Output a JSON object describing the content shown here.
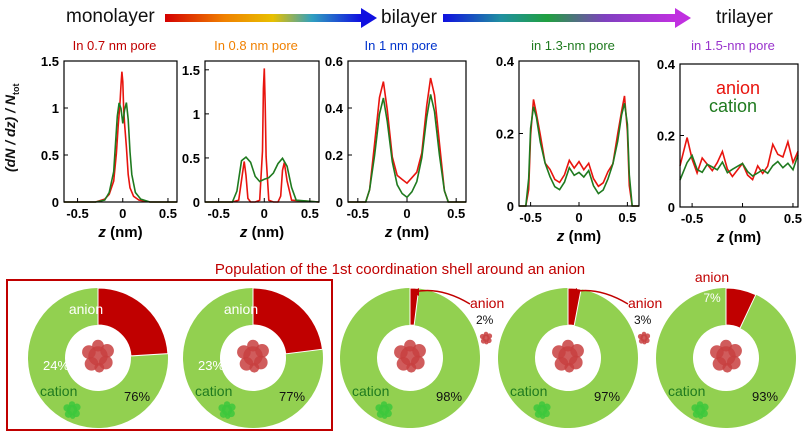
{
  "header": {
    "stages": [
      "monolayer",
      "bilayer",
      "trilayer"
    ]
  },
  "colors": {
    "anion": "#e8140e",
    "cation": "#1f7a1f",
    "ring": "#92d050",
    "wedge": "#c00000",
    "frame": "#c00000"
  },
  "y_axis_label": "(dN / dz) / N",
  "y_axis_label_sub": "tot",
  "x_axis_label_italic": "z",
  "x_axis_label_unit": " (nm)",
  "legend": {
    "anion": "anion",
    "cation": "cation"
  },
  "chart_data": [
    {
      "type": "line",
      "title": "In 0.7 nm pore",
      "title_color": "#c00000",
      "xlim": [
        -0.65,
        0.6
      ],
      "ylim": [
        0,
        1.5
      ],
      "xticks": [
        "-0.5",
        "0",
        "0.5"
      ],
      "xtick_values": [
        -0.5,
        0,
        0.5
      ],
      "yticks": [
        "0",
        "0.5",
        "1",
        "1.5"
      ],
      "ytick_values": [
        0,
        0.5,
        1,
        1.5
      ],
      "series": [
        {
          "key": "anion",
          "x": [
            -0.65,
            -0.3,
            -0.2,
            -0.15,
            -0.1,
            -0.07,
            -0.05,
            -0.03,
            -0.02,
            -0.01,
            0,
            0.01,
            0.02,
            0.04,
            0.06,
            0.08,
            0.12,
            0.18,
            0.3,
            0.6
          ],
          "y": [
            0,
            0,
            0.03,
            0.06,
            0.2,
            0.5,
            0.8,
            1.05,
            1.25,
            1.4,
            1.3,
            1.0,
            0.85,
            0.6,
            0.3,
            0.15,
            0.05,
            0.02,
            0,
            0
          ]
        },
        {
          "key": "cation",
          "x": [
            -0.65,
            -0.3,
            -0.2,
            -0.15,
            -0.1,
            -0.08,
            -0.06,
            -0.04,
            -0.02,
            0,
            0.02,
            0.04,
            0.06,
            0.08,
            0.1,
            0.14,
            0.2,
            0.3,
            0.6
          ],
          "y": [
            0,
            0,
            0.02,
            0.08,
            0.3,
            0.6,
            0.9,
            1.05,
            1.0,
            0.85,
            1.0,
            1.08,
            0.9,
            0.55,
            0.3,
            0.1,
            0.03,
            0,
            0
          ]
        }
      ]
    },
    {
      "type": "line",
      "title": "In 0.8 nm pore",
      "title_color": "#f08000",
      "xlim": [
        -0.65,
        0.6
      ],
      "ylim": [
        0,
        1.6
      ],
      "xticks": [
        "-0.5",
        "0",
        "0.5"
      ],
      "xtick_values": [
        -0.5,
        0,
        0.5
      ],
      "yticks": [
        "0",
        "0.5",
        "1",
        "1.5"
      ],
      "ytick_values": [
        0,
        0.5,
        1,
        1.5
      ],
      "series": [
        {
          "key": "anion",
          "x": [
            -0.65,
            -0.35,
            -0.28,
            -0.24,
            -0.22,
            -0.2,
            -0.18,
            -0.15,
            -0.1,
            -0.05,
            -0.02,
            -0.01,
            0,
            0.01,
            0.02,
            0.05,
            0.1,
            0.15,
            0.18,
            0.2,
            0.22,
            0.25,
            0.3,
            0.6
          ],
          "y": [
            0,
            0,
            0.02,
            0.3,
            0.45,
            0.3,
            0.05,
            0,
            0,
            0.02,
            0.6,
            1.3,
            1.52,
            1.1,
            0.5,
            0.02,
            0,
            0,
            0.05,
            0.35,
            0.45,
            0.25,
            0.02,
            0
          ]
        },
        {
          "key": "cation",
          "x": [
            -0.65,
            -0.35,
            -0.3,
            -0.25,
            -0.2,
            -0.15,
            -0.1,
            -0.05,
            0,
            0.05,
            0.1,
            0.15,
            0.2,
            0.25,
            0.3,
            0.35,
            0.6
          ],
          "y": [
            0,
            0,
            0.1,
            0.45,
            0.5,
            0.45,
            0.3,
            0.25,
            0.28,
            0.3,
            0.35,
            0.45,
            0.5,
            0.4,
            0.15,
            0.02,
            0
          ]
        }
      ]
    },
    {
      "type": "line",
      "title": "In 1 nm pore",
      "title_color": "#0033cc",
      "xlim": [
        -0.6,
        0.6
      ],
      "ylim": [
        0,
        0.6
      ],
      "xticks": [
        "-0.5",
        "0",
        "0.5"
      ],
      "xtick_values": [
        -0.5,
        0,
        0.5
      ],
      "yticks": [
        "0",
        "0.2",
        "0.4",
        "0.6"
      ],
      "ytick_values": [
        0,
        0.2,
        0.4,
        0.6
      ],
      "series": [
        {
          "key": "anion",
          "x": [
            -0.6,
            -0.42,
            -0.38,
            -0.33,
            -0.28,
            -0.24,
            -0.2,
            -0.15,
            -0.1,
            -0.05,
            0,
            0.05,
            0.1,
            0.15,
            0.2,
            0.24,
            0.28,
            0.33,
            0.38,
            0.42,
            0.6
          ],
          "y": [
            0,
            0,
            0.05,
            0.25,
            0.45,
            0.52,
            0.4,
            0.2,
            0.12,
            0.1,
            0.08,
            0.1,
            0.12,
            0.2,
            0.4,
            0.52,
            0.45,
            0.25,
            0.05,
            0,
            0
          ]
        },
        {
          "key": "cation",
          "x": [
            -0.6,
            -0.42,
            -0.38,
            -0.33,
            -0.28,
            -0.24,
            -0.2,
            -0.15,
            -0.1,
            -0.05,
            0,
            0.05,
            0.1,
            0.15,
            0.2,
            0.24,
            0.28,
            0.33,
            0.38,
            0.42,
            0.6
          ],
          "y": [
            0,
            0,
            0.05,
            0.2,
            0.38,
            0.45,
            0.35,
            0.18,
            0.08,
            0.04,
            0.02,
            0.04,
            0.08,
            0.18,
            0.35,
            0.45,
            0.38,
            0.2,
            0.05,
            0,
            0
          ]
        }
      ]
    },
    {
      "type": "line",
      "title": "in 1.3-nm pore",
      "title_color": "#1f7a1f",
      "xlim": [
        -0.62,
        0.62
      ],
      "ylim": [
        0,
        0.4
      ],
      "xticks": [
        "-0.5",
        "0",
        "0.5"
      ],
      "xtick_values": [
        -0.5,
        0,
        0.5
      ],
      "yticks": [
        "0",
        "0.2",
        "0.4"
      ],
      "ytick_values": [
        0,
        0.2,
        0.4
      ],
      "series": [
        {
          "key": "anion",
          "x": [
            -0.62,
            -0.55,
            -0.52,
            -0.5,
            -0.47,
            -0.44,
            -0.4,
            -0.35,
            -0.3,
            -0.25,
            -0.2,
            -0.15,
            -0.1,
            -0.05,
            0,
            0.05,
            0.1,
            0.15,
            0.2,
            0.25,
            0.3,
            0.35,
            0.4,
            0.44,
            0.47,
            0.5,
            0.52,
            0.55,
            0.62
          ],
          "y": [
            0,
            0,
            0.05,
            0.2,
            0.3,
            0.26,
            0.2,
            0.12,
            0.1,
            0.07,
            0.06,
            0.08,
            0.12,
            0.1,
            0.12,
            0.1,
            0.12,
            0.08,
            0.06,
            0.07,
            0.1,
            0.12,
            0.2,
            0.26,
            0.3,
            0.2,
            0.05,
            0,
            0
          ]
        },
        {
          "key": "cation",
          "x": [
            -0.62,
            -0.55,
            -0.52,
            -0.5,
            -0.47,
            -0.44,
            -0.4,
            -0.35,
            -0.3,
            -0.25,
            -0.2,
            -0.15,
            -0.1,
            -0.05,
            0,
            0.05,
            0.1,
            0.15,
            0.2,
            0.25,
            0.3,
            0.35,
            0.4,
            0.44,
            0.47,
            0.5,
            0.52,
            0.55,
            0.62
          ],
          "y": [
            0,
            0,
            0.08,
            0.22,
            0.28,
            0.25,
            0.18,
            0.12,
            0.08,
            0.05,
            0.04,
            0.06,
            0.1,
            0.08,
            0.09,
            0.08,
            0.1,
            0.06,
            0.04,
            0.05,
            0.08,
            0.12,
            0.18,
            0.25,
            0.28,
            0.22,
            0.08,
            0,
            0
          ]
        }
      ]
    },
    {
      "type": "line",
      "title": "in 1.5-nm pore",
      "title_color": "#9933cc",
      "xlim": [
        -0.62,
        0.55
      ],
      "ylim": [
        0,
        0.4
      ],
      "xticks": [
        "-0.5",
        "0",
        "0.5"
      ],
      "xtick_values": [
        -0.5,
        0,
        0.5
      ],
      "yticks": [
        "0",
        "0.2",
        "0.4"
      ],
      "ytick_values": [
        0,
        0.2,
        0.4
      ],
      "series": [
        {
          "key": "anion",
          "x": [
            -0.62,
            -0.55,
            -0.5,
            -0.45,
            -0.4,
            -0.35,
            -0.3,
            -0.25,
            -0.2,
            -0.15,
            -0.1,
            -0.05,
            0,
            0.05,
            0.1,
            0.15,
            0.2,
            0.25,
            0.3,
            0.35,
            0.4,
            0.45,
            0.5,
            0.55
          ],
          "y": [
            0.12,
            0.2,
            0.14,
            0.1,
            0.14,
            0.12,
            0.1,
            0.12,
            0.15,
            0.1,
            0.08,
            0.1,
            0.12,
            0.09,
            0.08,
            0.12,
            0.1,
            0.12,
            0.18,
            0.15,
            0.14,
            0.18,
            0.12,
            0.15
          ]
        },
        {
          "key": "cation",
          "x": [
            -0.62,
            -0.55,
            -0.5,
            -0.45,
            -0.4,
            -0.35,
            -0.3,
            -0.25,
            -0.2,
            -0.15,
            -0.1,
            -0.05,
            0,
            0.05,
            0.1,
            0.15,
            0.2,
            0.25,
            0.3,
            0.35,
            0.4,
            0.45,
            0.5,
            0.55
          ],
          "y": [
            0.08,
            0.13,
            0.15,
            0.11,
            0.1,
            0.12,
            0.11,
            0.1,
            0.12,
            0.09,
            0.1,
            0.11,
            0.12,
            0.1,
            0.09,
            0.1,
            0.11,
            0.1,
            0.12,
            0.13,
            0.11,
            0.12,
            0.1,
            0.14
          ]
        }
      ]
    },
    {
      "type": "pie",
      "title": "Population of the 1st coordination shell around an anion",
      "charts": [
        {
          "anion_pct": 24,
          "cation_pct": 76,
          "anion_label": "anion",
          "cation_label": "cation",
          "anion_value_text": "24%",
          "cation_value_text": "76%",
          "framed": true
        },
        {
          "anion_pct": 23,
          "cation_pct": 77,
          "anion_label": "anion",
          "cation_label": "cation",
          "anion_value_text": "23%",
          "cation_value_text": "77%",
          "framed": true
        },
        {
          "anion_pct": 2,
          "cation_pct": 98,
          "anion_label": "anion",
          "cation_label": "cation",
          "anion_value_text": "2%",
          "cation_value_text": "98%",
          "framed": false
        },
        {
          "anion_pct": 3,
          "cation_pct": 97,
          "anion_label": "anion",
          "cation_label": "cation",
          "anion_value_text": "3%",
          "cation_value_text": "97%",
          "framed": false
        },
        {
          "anion_pct": 7,
          "cation_pct": 93,
          "anion_label": "anion",
          "cation_label": "cation",
          "anion_value_text": "7%",
          "cation_value_text": "93%",
          "framed": false
        }
      ]
    }
  ]
}
